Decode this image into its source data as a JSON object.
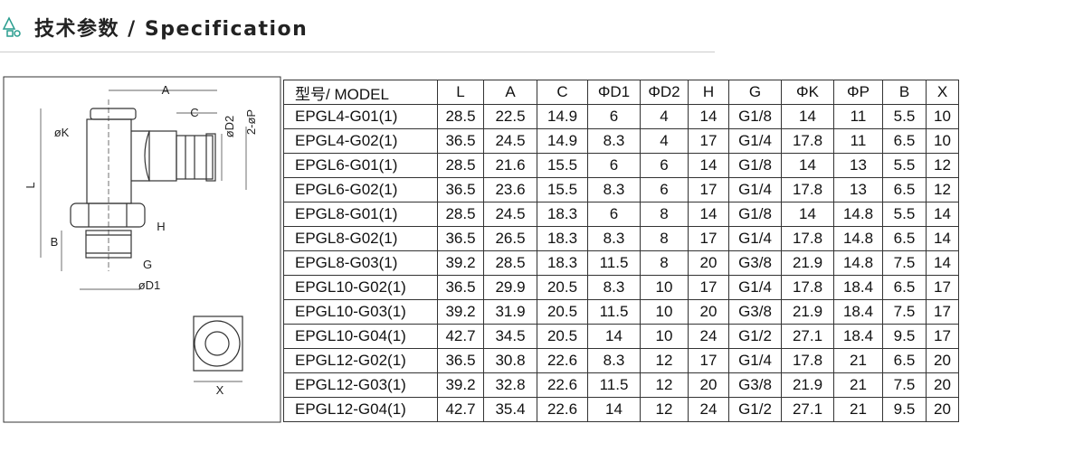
{
  "header": {
    "title": "技术参数 / Specification"
  },
  "diagram": {
    "labels": [
      "A",
      "C",
      "øD2",
      "2-øP",
      "øK",
      "L",
      "B",
      "H",
      "G",
      "øD1",
      "X"
    ]
  },
  "table": {
    "columns": [
      "型号/ MODEL",
      "L",
      "A",
      "C",
      "ΦD1",
      "ΦD2",
      "H",
      "G",
      "ΦK",
      "ΦP",
      "B",
      "X"
    ],
    "rows": [
      [
        "EPGL4-G01(1)",
        28.5,
        22.5,
        14.9,
        6,
        4,
        14,
        "G1/8",
        14,
        11,
        5.5,
        10
      ],
      [
        "EPGL4-G02(1)",
        36.5,
        24.5,
        14.9,
        8.3,
        4,
        17,
        "G1/4",
        17.8,
        11,
        6.5,
        10
      ],
      [
        "EPGL6-G01(1)",
        28.5,
        21.6,
        15.5,
        6,
        6,
        14,
        "G1/8",
        14,
        13,
        5.5,
        12
      ],
      [
        "EPGL6-G02(1)",
        36.5,
        23.6,
        15.5,
        8.3,
        6,
        17,
        "G1/4",
        17.8,
        13,
        6.5,
        12
      ],
      [
        "EPGL8-G01(1)",
        28.5,
        24.5,
        18.3,
        6,
        8,
        14,
        "G1/8",
        14,
        14.8,
        5.5,
        14
      ],
      [
        "EPGL8-G02(1)",
        36.5,
        26.5,
        18.3,
        8.3,
        8,
        17,
        "G1/4",
        17.8,
        14.8,
        6.5,
        14
      ],
      [
        "EPGL8-G03(1)",
        39.2,
        28.5,
        18.3,
        11.5,
        8,
        20,
        "G3/8",
        21.9,
        14.8,
        7.5,
        14
      ],
      [
        "EPGL10-G02(1)",
        36.5,
        29.9,
        20.5,
        8.3,
        10,
        17,
        "G1/4",
        17.8,
        18.4,
        6.5,
        17
      ],
      [
        "EPGL10-G03(1)",
        39.2,
        31.9,
        20.5,
        11.5,
        10,
        20,
        "G3/8",
        21.9,
        18.4,
        7.5,
        17
      ],
      [
        "EPGL10-G04(1)",
        42.7,
        34.5,
        20.5,
        14,
        10,
        24,
        "G1/2",
        27.1,
        18.4,
        9.5,
        17
      ],
      [
        "EPGL12-G02(1)",
        36.5,
        30.8,
        22.6,
        8.3,
        12,
        17,
        "G1/4",
        17.8,
        21,
        6.5,
        20
      ],
      [
        "EPGL12-G03(1)",
        39.2,
        32.8,
        22.6,
        11.5,
        12,
        20,
        "G3/8",
        21.9,
        21,
        7.5,
        20
      ],
      [
        "EPGL12-G04(1)",
        42.7,
        35.4,
        22.6,
        14,
        12,
        24,
        "G1/2",
        27.1,
        21,
        9.5,
        20
      ]
    ]
  }
}
